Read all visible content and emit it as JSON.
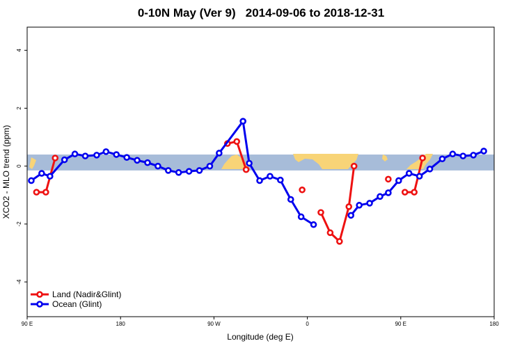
{
  "chart_data": {
    "type": "line",
    "title": "0-10N May (Ver 9)   2014-09-06 to 2018-12-31",
    "xlabel": "Longitude (deg E)",
    "ylabel": "XCO2 - MLO trend (ppm)",
    "xlim": [
      90,
      450
    ],
    "ylim": [
      -5.2,
      4.8
    ],
    "x_ticks": [
      {
        "value": 90,
        "label": "90 E"
      },
      {
        "value": 180,
        "label": "180"
      },
      {
        "value": 270,
        "label": "90 W"
      },
      {
        "value": 360,
        "label": "0"
      },
      {
        "value": 450,
        "label": "90 E"
      },
      {
        "value": 540,
        "label": "180"
      }
    ],
    "y_ticks": [
      {
        "value": 4,
        "label": "4"
      },
      {
        "value": 2,
        "label": "2"
      },
      {
        "value": 0,
        "label": "0"
      },
      {
        "value": -2,
        "label": "-2"
      },
      {
        "value": -4,
        "label": "-4"
      }
    ],
    "grid": false,
    "legend_position": "bottom-left",
    "background_band": {
      "y_range": [
        -0.15,
        0.4
      ],
      "ocean_color": "#a7bcd9",
      "land_color": "#f8d477"
    },
    "series": [
      {
        "name": "Land (Nadir&Glint)",
        "color": "#ee1111",
        "points": [
          [
            99,
            -0.9
          ],
          [
            108,
            -0.9
          ],
          [
            117,
            0.28
          ],
          null,
          [
            283,
            0.78
          ],
          [
            292,
            0.85
          ],
          [
            301,
            -0.12
          ],
          null,
          [
            355,
            -0.82
          ],
          null,
          [
            373,
            -1.6
          ],
          [
            382,
            -2.3
          ],
          [
            391,
            -2.6
          ],
          [
            400,
            -1.4
          ],
          [
            405,
            0
          ],
          null,
          [
            438,
            -0.45
          ],
          null,
          [
            454,
            -0.9
          ],
          [
            463,
            -0.9
          ],
          [
            471,
            0.28
          ]
        ]
      },
      {
        "name": "Ocean (Glint)",
        "color": "#0000ee",
        "points": [
          [
            94,
            -0.5
          ],
          [
            104,
            -0.25
          ],
          [
            112,
            -0.35
          ],
          [
            126,
            0.22
          ],
          [
            136,
            0.42
          ],
          [
            146,
            0.35
          ],
          [
            157,
            0.38
          ],
          [
            166,
            0.5
          ],
          [
            176,
            0.4
          ],
          [
            186,
            0.3
          ],
          [
            196,
            0.2
          ],
          [
            206,
            0.12
          ],
          [
            216,
            0.0
          ],
          [
            226,
            -0.15
          ],
          [
            236,
            -0.22
          ],
          [
            246,
            -0.18
          ],
          [
            256,
            -0.15
          ],
          [
            266,
            0.0
          ],
          [
            275,
            0.45
          ],
          [
            298,
            1.55
          ],
          [
            304,
            0.1
          ],
          [
            314,
            -0.5
          ],
          [
            324,
            -0.35
          ],
          [
            334,
            -0.48
          ],
          [
            344,
            -1.15
          ],
          [
            354,
            -1.75
          ],
          [
            366,
            -2.02
          ],
          null,
          [
            402,
            -1.7
          ],
          [
            410,
            -1.35
          ],
          [
            420,
            -1.28
          ],
          [
            430,
            -1.05
          ],
          [
            438,
            -0.92
          ],
          [
            448,
            -0.5
          ],
          [
            458,
            -0.25
          ],
          [
            468,
            -0.35
          ],
          [
            478,
            -0.1
          ],
          [
            490,
            0.25
          ],
          [
            500,
            0.42
          ],
          [
            510,
            0.35
          ],
          [
            520,
            0.38
          ],
          [
            530,
            0.52
          ]
        ]
      }
    ]
  }
}
